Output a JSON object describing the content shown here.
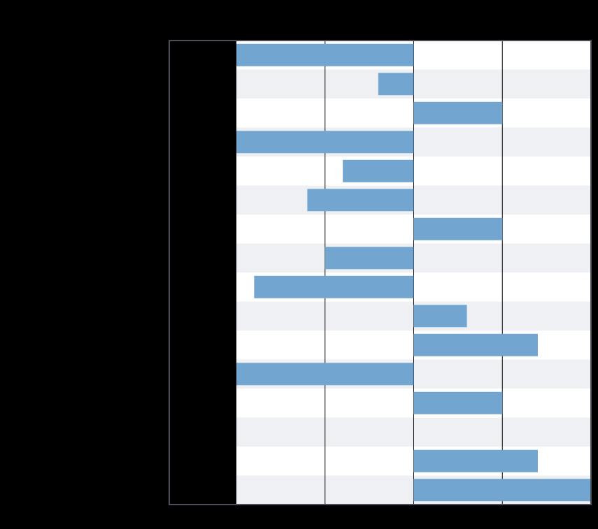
{
  "chart_data": {
    "type": "hbar",
    "categories": [
      null,
      null,
      null,
      null,
      null,
      null,
      null,
      null,
      null,
      null,
      null,
      null,
      null,
      null,
      null,
      null
    ],
    "values": [
      -2,
      -0.4,
      1,
      -2,
      -0.8,
      -1.2,
      1,
      -1,
      -1.8,
      0.6,
      1.4,
      -2,
      1,
      0,
      1.4,
      2
    ],
    "color": "#72a5cf",
    "xlim": [
      -2,
      2
    ],
    "xticks": [
      -1,
      0,
      1
    ],
    "grid": true
  }
}
